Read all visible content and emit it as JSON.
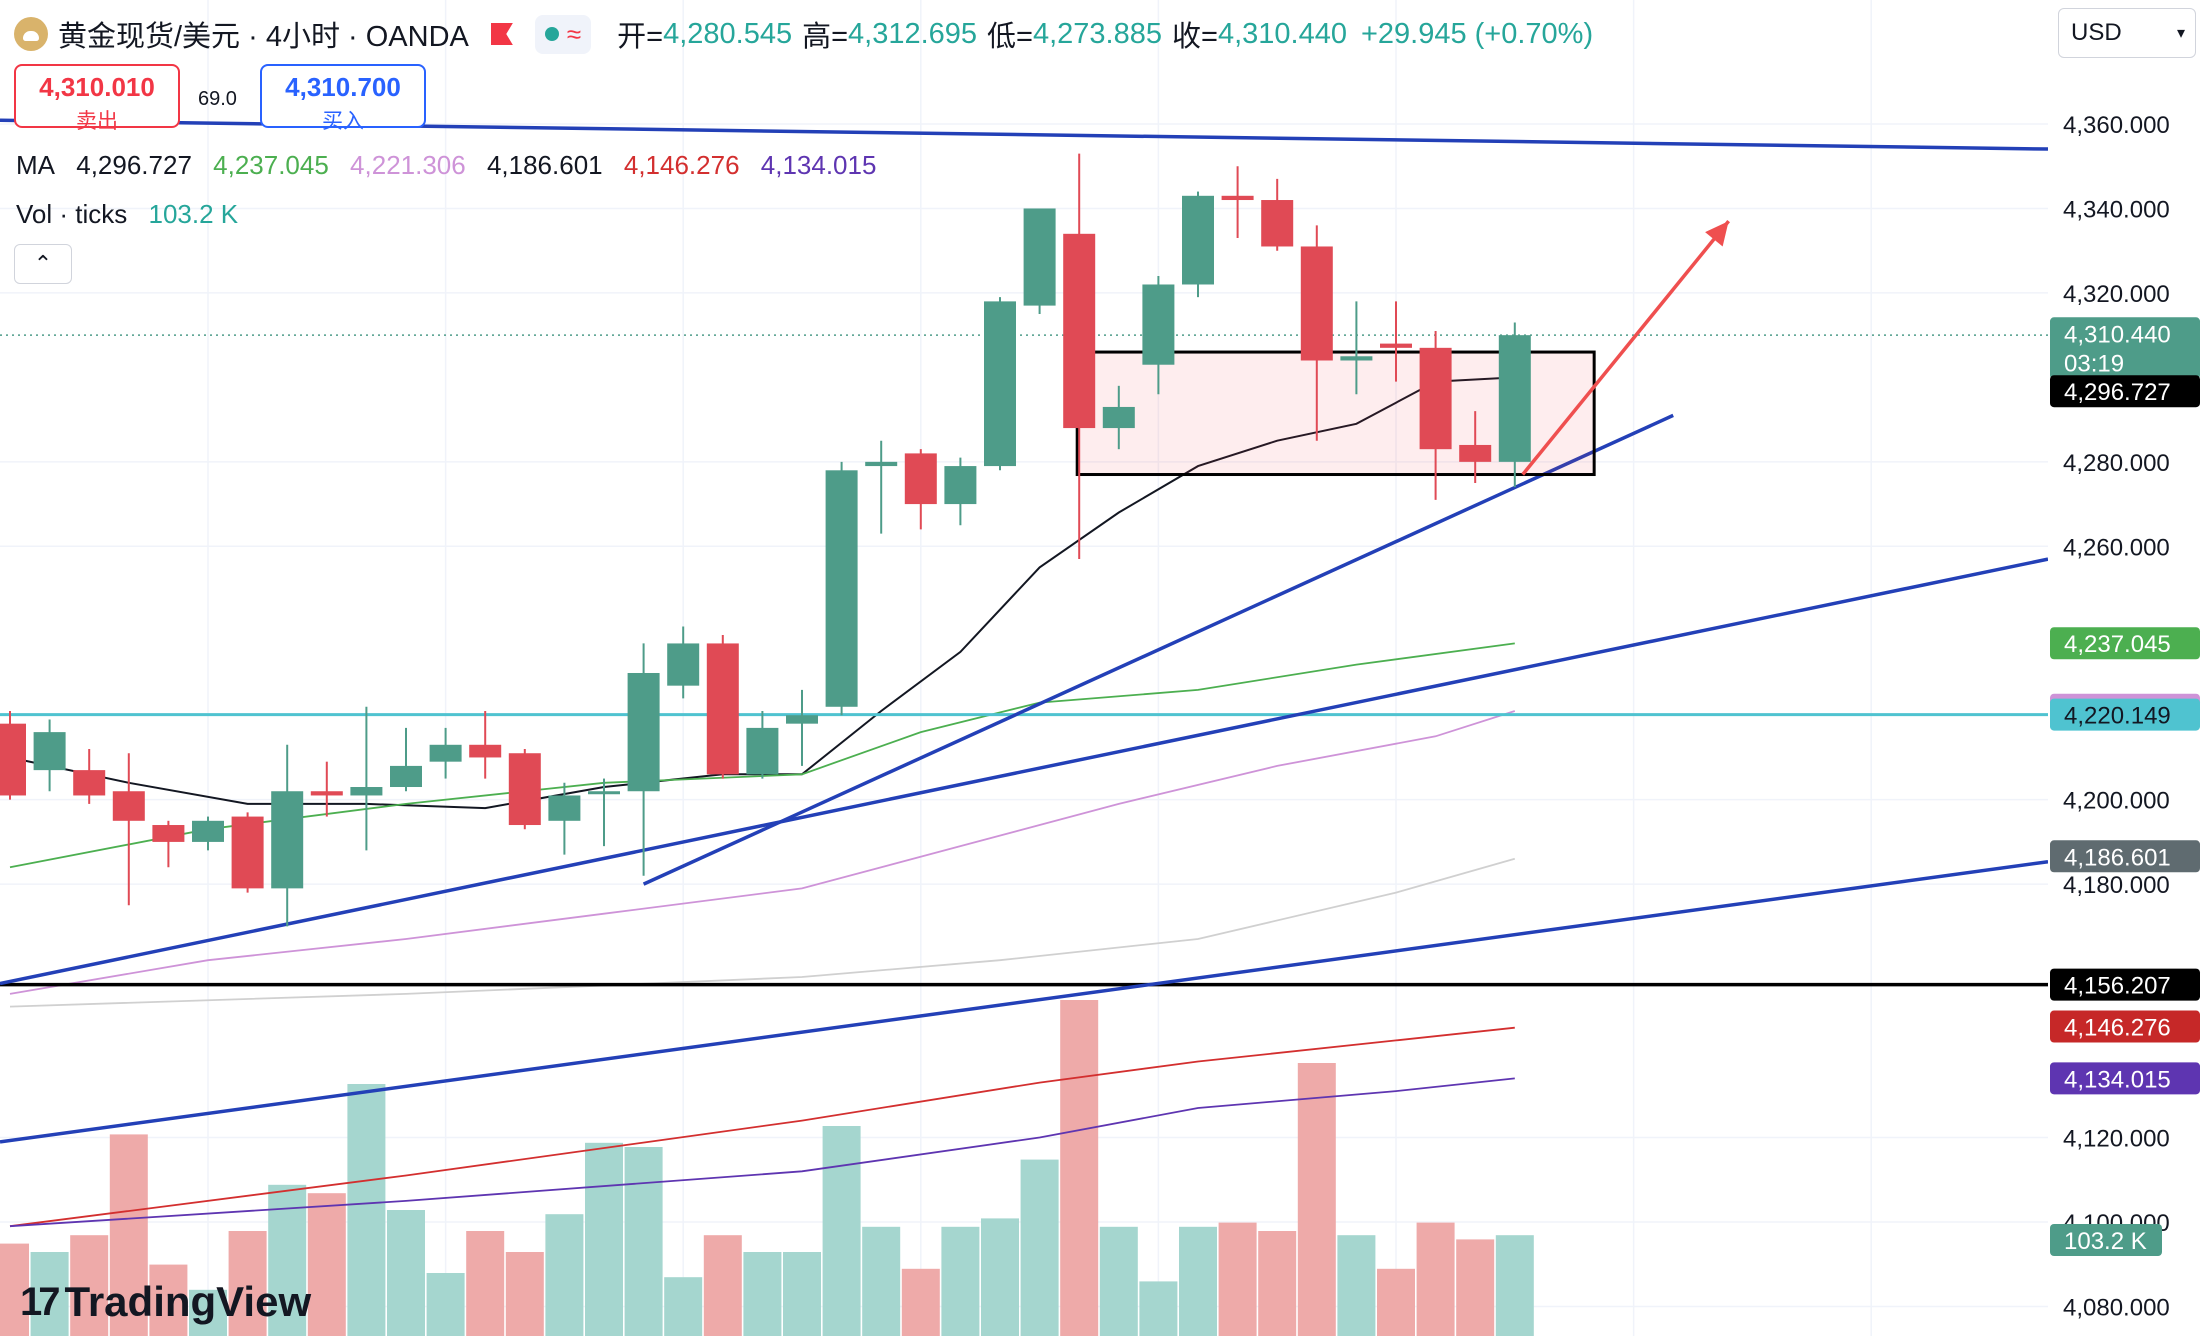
{
  "header": {
    "symbol": "黄金现货/美元 · 4小时 · OANDA",
    "open_label": "开=",
    "open": "4,280.545",
    "high_label": "高=",
    "high": "4,312.695",
    "low_label": "低=",
    "low": "4,273.885",
    "close_label": "收=",
    "close": "4,310.440",
    "change": "+29.945 (+0.70%)"
  },
  "trade": {
    "sell_price": "4,310.010",
    "sell_label": "卖出",
    "spread": "69.0",
    "buy_price": "4,310.700",
    "buy_label": "买入"
  },
  "ma_legend": {
    "label": "MA",
    "values": [
      "4,296.727",
      "4,237.045",
      "4,221.306",
      "4,186.601",
      "4,146.276",
      "4,134.015"
    ],
    "colors": [
      "#131722",
      "#4caf50",
      "#ce93d8",
      "#131722",
      "#d32f2f",
      "#5e35b1"
    ]
  },
  "vol_legend": {
    "label": "Vol · ticks",
    "value": "103.2 K"
  },
  "currency": "USD",
  "watermark": "TradingView",
  "colors": {
    "up": "#4e9c89",
    "down": "#e04a55",
    "vol_up": "#a5d6cf",
    "vol_down": "#eeaaa9",
    "trendline": "#2340b7",
    "arrow": "#ef4f4f"
  },
  "chart_data": {
    "type": "candlestick",
    "y_axis": {
      "range": [
        4073,
        4378
      ],
      "ticks": [
        4360,
        4340,
        4320,
        4280,
        4260,
        4200,
        4180,
        4120,
        4100,
        4080
      ],
      "tick_labels": [
        "4,360.000",
        "4,340.000",
        "4,320.000",
        "4,280.000",
        "4,260.000",
        "4,200.000",
        "4,180.000",
        "4,120.000",
        "4,100.000",
        "4,080.000"
      ]
    },
    "candles": [
      {
        "o": 4218,
        "h": 4221,
        "l": 4200,
        "c": 4201
      },
      {
        "o": 4207,
        "h": 4219,
        "l": 4202,
        "c": 4216
      },
      {
        "o": 4207,
        "h": 4212,
        "l": 4199,
        "c": 4201
      },
      {
        "o": 4202,
        "h": 4211,
        "l": 4175,
        "c": 4195
      },
      {
        "o": 4194,
        "h": 4195,
        "l": 4184,
        "c": 4190
      },
      {
        "o": 4190,
        "h": 4196,
        "l": 4188,
        "c": 4195
      },
      {
        "o": 4196,
        "h": 4197,
        "l": 4178,
        "c": 4179
      },
      {
        "o": 4179,
        "h": 4213,
        "l": 4170,
        "c": 4202
      },
      {
        "o": 4202,
        "h": 4209,
        "l": 4196,
        "c": 4201
      },
      {
        "o": 4201,
        "h": 4222,
        "l": 4188,
        "c": 4203
      },
      {
        "o": 4203,
        "h": 4217,
        "l": 4202,
        "c": 4208
      },
      {
        "o": 4209,
        "h": 4217,
        "l": 4205,
        "c": 4213
      },
      {
        "o": 4213,
        "h": 4221,
        "l": 4205,
        "c": 4210
      },
      {
        "o": 4211,
        "h": 4212,
        "l": 4193,
        "c": 4194
      },
      {
        "o": 4195,
        "h": 4204,
        "l": 4187,
        "c": 4201
      },
      {
        "o": 4202,
        "h": 4205,
        "l": 4189,
        "c": 4202
      },
      {
        "o": 4202,
        "h": 4237,
        "l": 4182,
        "c": 4230
      },
      {
        "o": 4227,
        "h": 4241,
        "l": 4224,
        "c": 4237
      },
      {
        "o": 4237,
        "h": 4239,
        "l": 4205,
        "c": 4206
      },
      {
        "o": 4206,
        "h": 4221,
        "l": 4205,
        "c": 4217
      },
      {
        "o": 4218,
        "h": 4226,
        "l": 4208,
        "c": 4220
      },
      {
        "o": 4222,
        "h": 4280,
        "l": 4220,
        "c": 4278
      },
      {
        "o": 4279,
        "h": 4285,
        "l": 4263,
        "c": 4280
      },
      {
        "o": 4282,
        "h": 4283,
        "l": 4264,
        "c": 4270
      },
      {
        "o": 4270,
        "h": 4281,
        "l": 4265,
        "c": 4279
      },
      {
        "o": 4279,
        "h": 4319,
        "l": 4278,
        "c": 4318
      },
      {
        "o": 4317,
        "h": 4339,
        "l": 4315,
        "c": 4340
      },
      {
        "o": 4334,
        "h": 4353,
        "l": 4257,
        "c": 4288
      },
      {
        "o": 4288,
        "h": 4298,
        "l": 4283,
        "c": 4293
      },
      {
        "o": 4303,
        "h": 4324,
        "l": 4296,
        "c": 4322
      },
      {
        "o": 4322,
        "h": 4344,
        "l": 4319,
        "c": 4343
      },
      {
        "o": 4343,
        "h": 4350,
        "l": 4333,
        "c": 4342
      },
      {
        "o": 4342,
        "h": 4347,
        "l": 4330,
        "c": 4331
      },
      {
        "o": 4331,
        "h": 4336,
        "l": 4285,
        "c": 4304
      },
      {
        "o": 4304,
        "h": 4318,
        "l": 4296,
        "c": 4305
      },
      {
        "o": 4308,
        "h": 4318,
        "l": 4299,
        "c": 4307
      },
      {
        "o": 4307,
        "h": 4311,
        "l": 4271,
        "c": 4283
      },
      {
        "o": 4284,
        "h": 4292,
        "l": 4275,
        "c": 4280
      },
      {
        "o": 4280,
        "h": 4313,
        "l": 4274,
        "c": 4310
      }
    ],
    "volumes": [
      22,
      20,
      24,
      48,
      17,
      11,
      25,
      36,
      34,
      60,
      30,
      15,
      25,
      20,
      29,
      46,
      45,
      14,
      24,
      20,
      20,
      50,
      26,
      16,
      26,
      28,
      42,
      80,
      26,
      13,
      26,
      27,
      25,
      65,
      24,
      16,
      27,
      23,
      24
    ],
    "ma_lines": [
      {
        "name": "MA",
        "color": "#131722",
        "points": [
          [
            0,
            4210
          ],
          [
            3,
            4204
          ],
          [
            6,
            4199
          ],
          [
            9,
            4199
          ],
          [
            12,
            4198
          ],
          [
            15,
            4203
          ],
          [
            18,
            4206
          ],
          [
            20,
            4206
          ],
          [
            22,
            4221
          ],
          [
            24,
            4235
          ],
          [
            26,
            4255
          ],
          [
            28,
            4268
          ],
          [
            30,
            4279
          ],
          [
            32,
            4285
          ],
          [
            34,
            4289
          ],
          [
            35,
            4294
          ],
          [
            36,
            4299
          ],
          [
            38,
            4300
          ]
        ]
      },
      {
        "name": "MA",
        "color": "#4caf50",
        "points": [
          [
            0,
            4184
          ],
          [
            5,
            4193
          ],
          [
            10,
            4199
          ],
          [
            15,
            4204
          ],
          [
            20,
            4206
          ],
          [
            23,
            4216
          ],
          [
            26,
            4223
          ],
          [
            30,
            4226
          ],
          [
            34,
            4232
          ],
          [
            38,
            4237
          ]
        ]
      },
      {
        "name": "MA",
        "color": "#ce93d8",
        "points": [
          [
            0,
            4154
          ],
          [
            5,
            4162
          ],
          [
            10,
            4167
          ],
          [
            15,
            4173
          ],
          [
            20,
            4179
          ],
          [
            24,
            4189
          ],
          [
            28,
            4199
          ],
          [
            32,
            4208
          ],
          [
            36,
            4215
          ],
          [
            38,
            4221
          ]
        ]
      },
      {
        "name": "MA",
        "color": "#d0d0d0",
        "points": [
          [
            0,
            4151
          ],
          [
            10,
            4154
          ],
          [
            20,
            4158
          ],
          [
            25,
            4162
          ],
          [
            30,
            4167
          ],
          [
            35,
            4178
          ],
          [
            38,
            4186
          ]
        ]
      },
      {
        "name": "MA",
        "color": "#d32f2f",
        "points": [
          [
            0,
            4099
          ],
          [
            10,
            4111
          ],
          [
            20,
            4124
          ],
          [
            26,
            4133
          ],
          [
            30,
            4138
          ],
          [
            35,
            4143
          ],
          [
            38,
            4146
          ]
        ]
      },
      {
        "name": "MA",
        "color": "#5e35b1",
        "points": [
          [
            0,
            4099
          ],
          [
            10,
            4105
          ],
          [
            20,
            4112
          ],
          [
            26,
            4120
          ],
          [
            30,
            4127
          ],
          [
            35,
            4131
          ],
          [
            38,
            4134
          ]
        ]
      }
    ],
    "trendlines": [
      {
        "name": "upper-resistance",
        "points": [
          [
            -1,
            4361
          ],
          [
            52,
            4354
          ]
        ]
      },
      {
        "name": "channel-top",
        "points": [
          [
            -1,
            4155
          ],
          [
            52,
            4258
          ]
        ]
      },
      {
        "name": "short-term-support",
        "points": [
          [
            16,
            4180
          ],
          [
            42,
            4291
          ]
        ]
      },
      {
        "name": "channel-bottom",
        "points": [
          [
            -1,
            4118
          ],
          [
            52,
            4186
          ]
        ]
      }
    ],
    "horizontal_lines": [
      {
        "name": "support-4220",
        "value": 4220.149,
        "color": "#4fc3d0"
      },
      {
        "name": "support-4156",
        "value": 4156.207,
        "color": "#000000"
      }
    ],
    "range_box": {
      "x_from": 27,
      "x_to": 39.6,
      "y_high": 4306,
      "y_low": 4277
    },
    "forecast_arrow": {
      "from": [
        38.2,
        4277
      ],
      "to": [
        43.4,
        4337
      ]
    },
    "badges": [
      {
        "label": "4,310.440",
        "sub": "03:19",
        "value": 4310.44,
        "bg": "#4e9c89",
        "fg": "#ffffff"
      },
      {
        "label": "4,296.727",
        "value": 4296.727,
        "bg": "#000000",
        "fg": "#ffffff"
      },
      {
        "label": "4,237.045",
        "value": 4237.045,
        "bg": "#4caf50",
        "fg": "#ffffff"
      },
      {
        "label": "4,221.306",
        "value": 4221.306,
        "bg": "#ce93d8",
        "fg": "#131722"
      },
      {
        "label": "4,220.149",
        "value": 4220.149,
        "bg": "#4fc3d0",
        "fg": "#131722"
      },
      {
        "label": "4,186.601",
        "value": 4186.601,
        "bg": "#5f6b70",
        "fg": "#ffffff"
      },
      {
        "label": "4,156.207",
        "value": 4156.207,
        "bg": "#000000",
        "fg": "#ffffff"
      },
      {
        "label": "4,146.276",
        "value": 4146.276,
        "bg": "#c62828",
        "fg": "#ffffff"
      },
      {
        "label": "4,134.015",
        "value": 4134.015,
        "bg": "#5e35b1",
        "fg": "#ffffff"
      }
    ],
    "volume_badge": "103.2 K"
  }
}
